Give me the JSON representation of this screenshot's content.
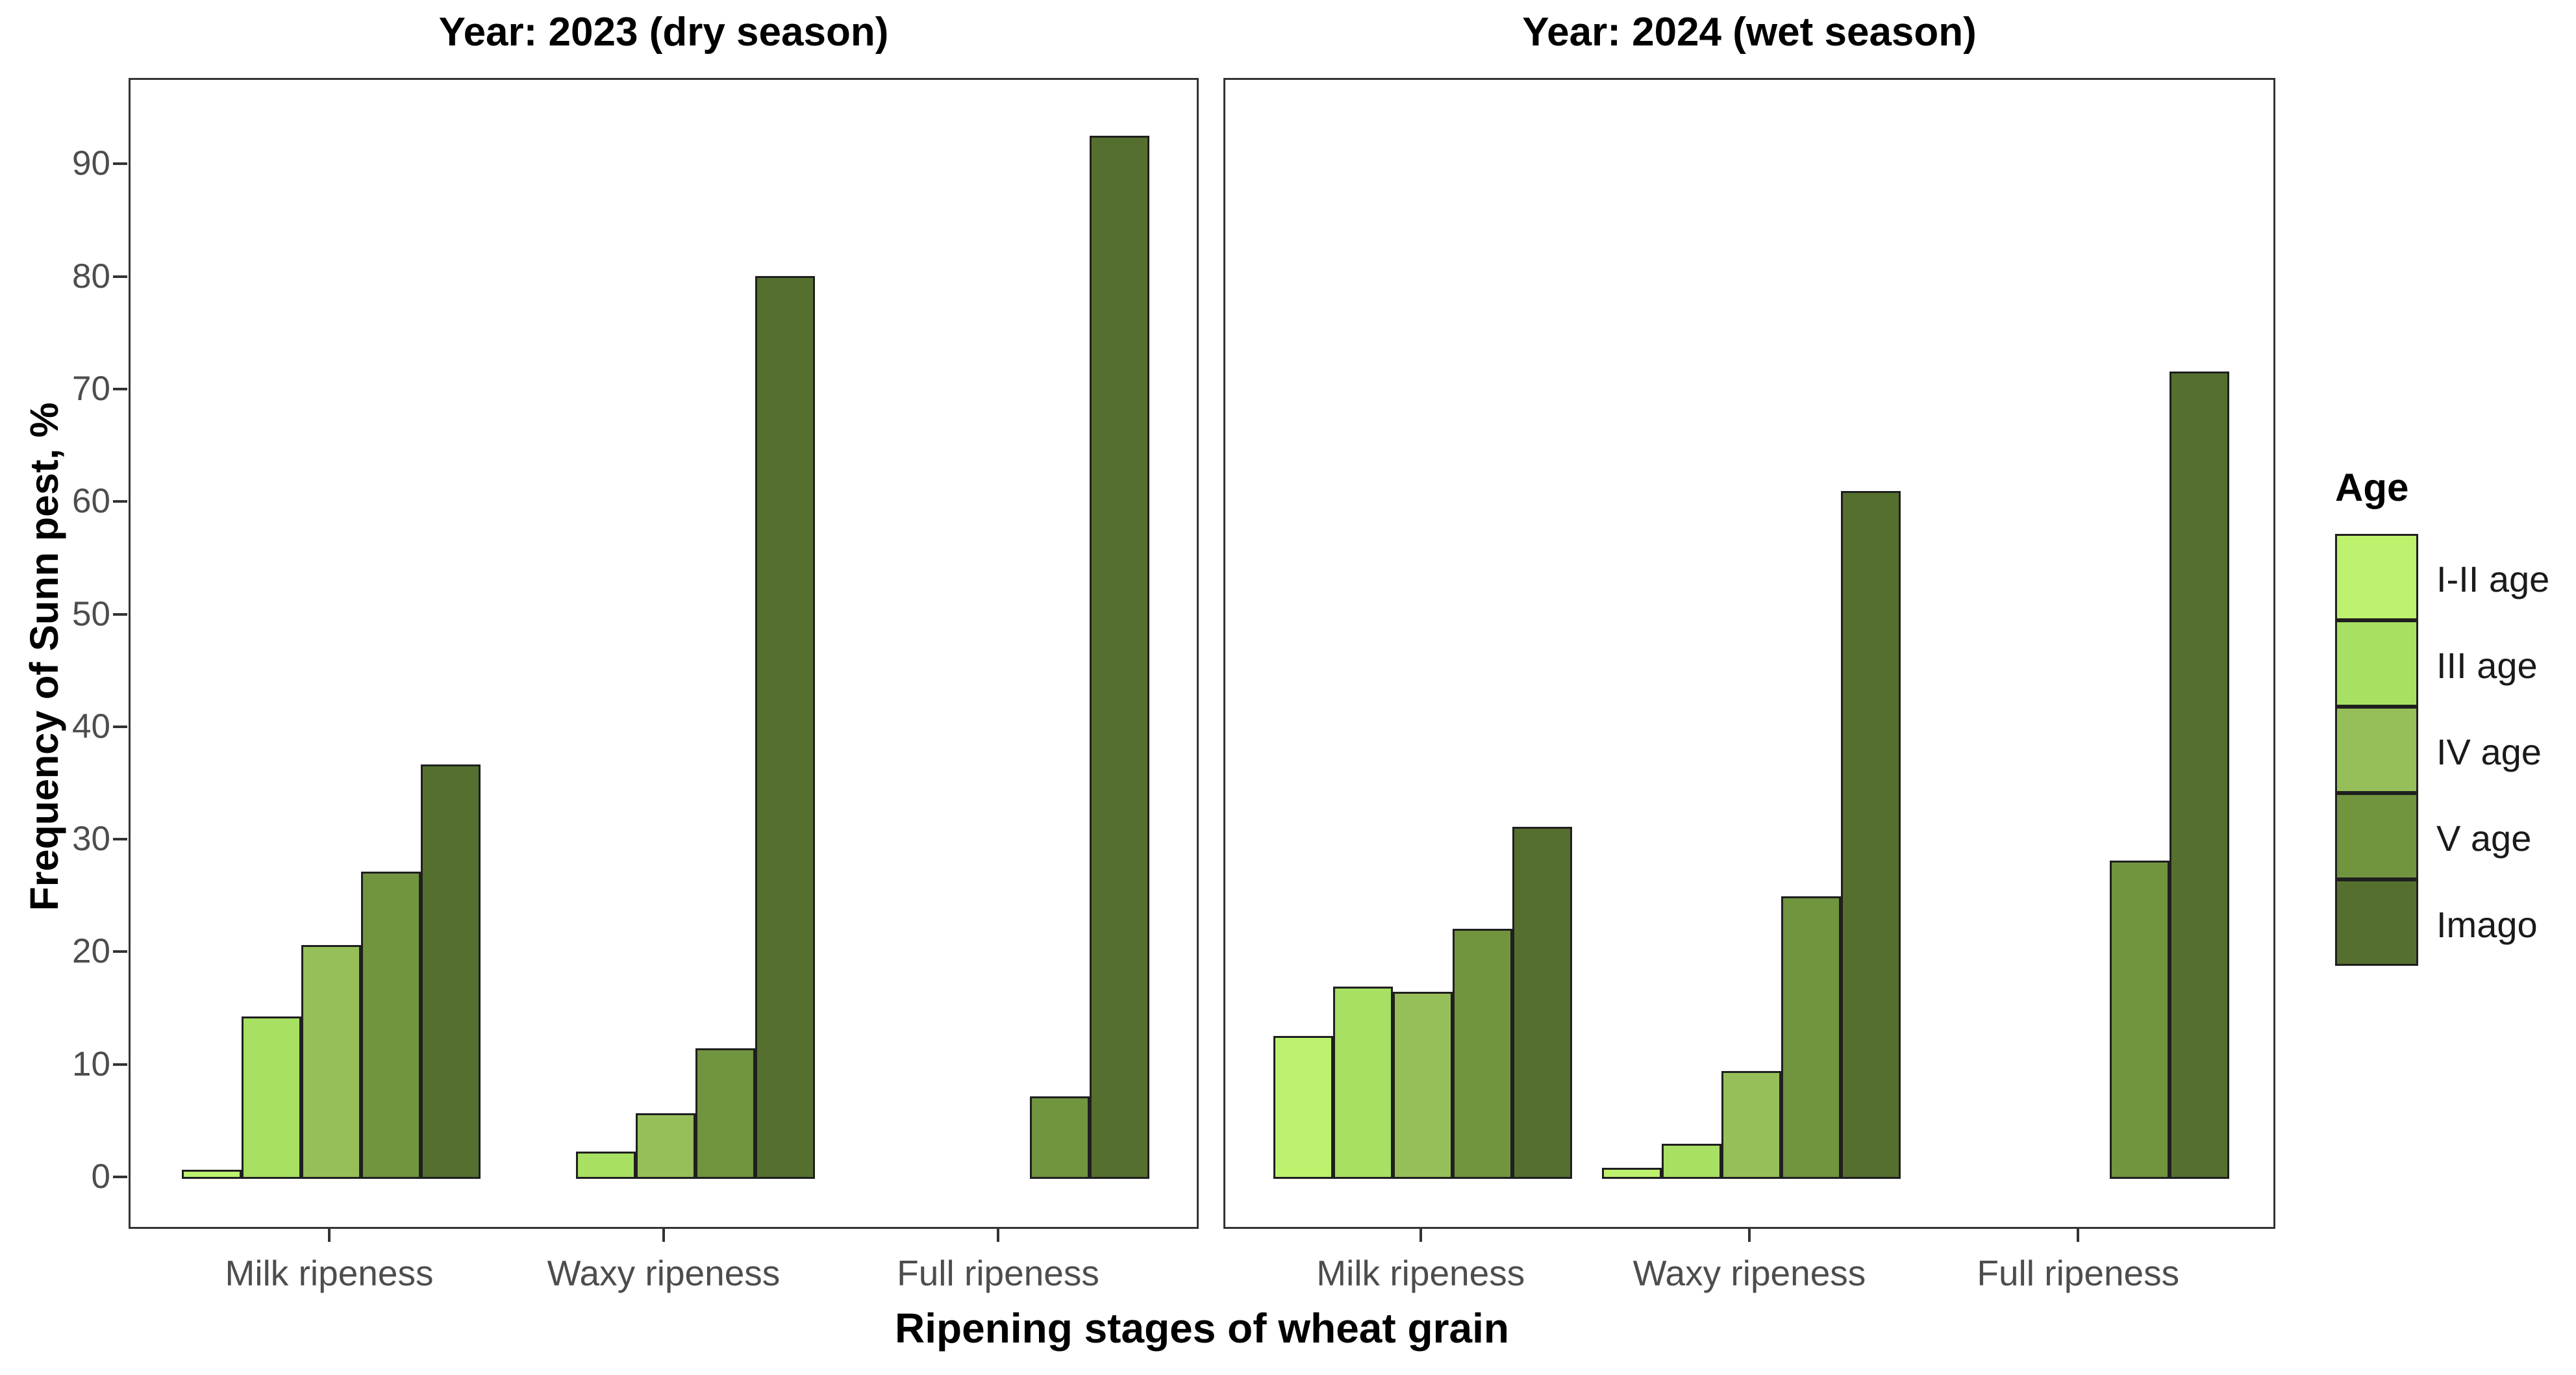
{
  "chart_data": {
    "type": "bar",
    "title": "",
    "xlabel": "Ripening stages of wheat grain",
    "ylabel": "Frequency of Sunn pest, %",
    "ylim": [
      0,
      95
    ],
    "yticks": [
      0,
      10,
      20,
      30,
      40,
      50,
      60,
      70,
      80,
      90
    ],
    "grid": false,
    "background": "#ffffff",
    "bar_border_color": "#1f1f1f",
    "axis_text_color": "#4d4d4d",
    "panel_border_color": "#333333",
    "legend_position": "right",
    "legend_title": "Age",
    "categories": [
      "Milk ripeness",
      "Waxy ripeness",
      "Full ripeness"
    ],
    "series_names": [
      "I-II age",
      "III age",
      "IV age",
      "V age",
      "Imago"
    ],
    "series_colors": [
      "#bdf16e",
      "#a8e063",
      "#96bf59",
      "#71943f",
      "#55702e"
    ],
    "facets": [
      {
        "label": "Year: 2023 (dry season)",
        "series": [
          {
            "name": "I-II age",
            "color": "#bdf16e",
            "values": [
              0.8,
              null,
              null
            ]
          },
          {
            "name": "III age",
            "color": "#a8e063",
            "values": [
              14.4,
              2.4,
              null
            ]
          },
          {
            "name": "IV age",
            "color": "#96bf59",
            "values": [
              20.8,
              5.8,
              null
            ]
          },
          {
            "name": "V age",
            "color": "#71943f",
            "values": [
              27.3,
              11.6,
              7.3
            ]
          },
          {
            "name": "Imago",
            "color": "#55702e",
            "values": [
              36.8,
              80.2,
              92.7
            ]
          }
        ]
      },
      {
        "label": "Year: 2024 (wet season)",
        "series": [
          {
            "name": "I-II age",
            "color": "#bdf16e",
            "values": [
              12.7,
              1.0,
              null
            ]
          },
          {
            "name": "III age",
            "color": "#a8e063",
            "values": [
              17.1,
              3.1,
              null
            ]
          },
          {
            "name": "IV age",
            "color": "#96bf59",
            "values": [
              16.6,
              9.6,
              null
            ]
          },
          {
            "name": "V age",
            "color": "#71943f",
            "values": [
              22.2,
              25.1,
              28.3
            ]
          },
          {
            "name": "Imago",
            "color": "#55702e",
            "values": [
              31.3,
              61.1,
              71.7
            ]
          }
        ]
      }
    ]
  }
}
